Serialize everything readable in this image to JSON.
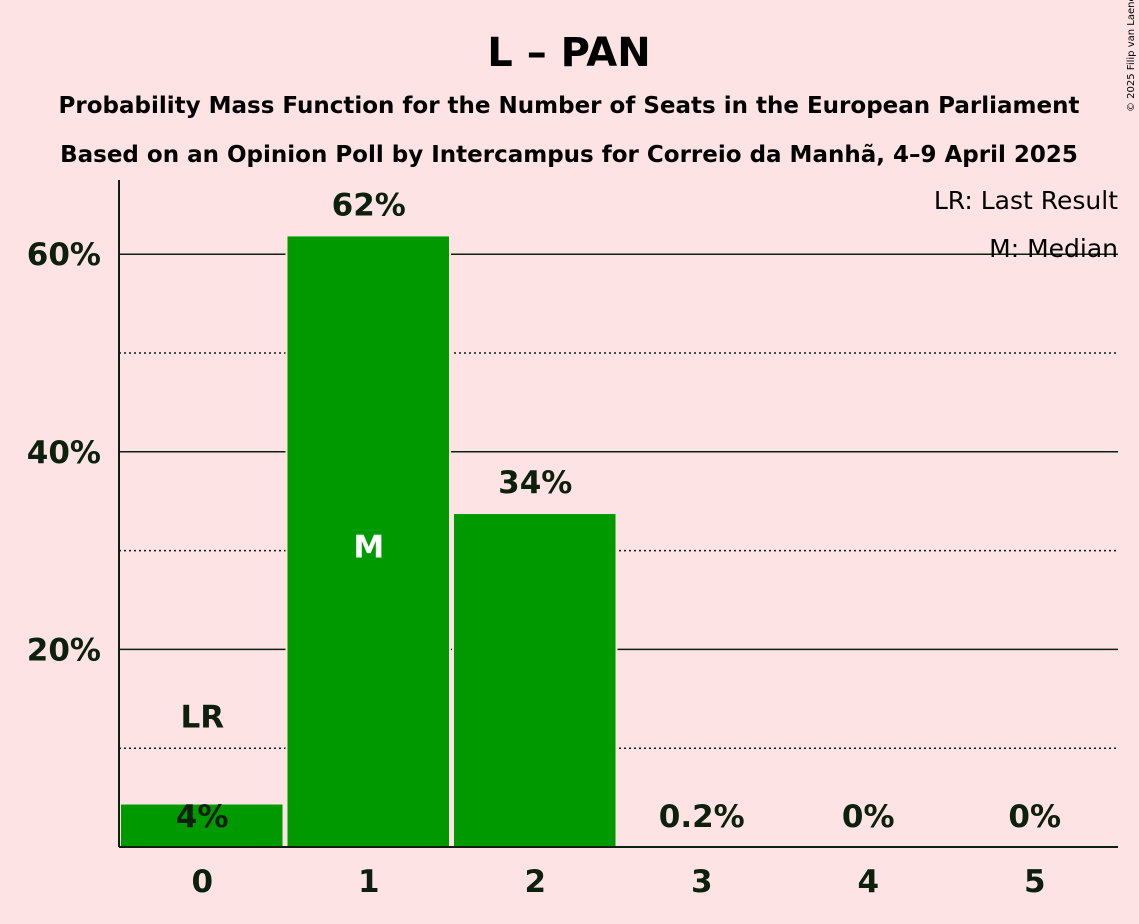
{
  "title": "L – PAN",
  "subtitle_line1": "Probability Mass Function for the Number of Seats in the European Parliament",
  "subtitle_line2": "Based on an Opinion Poll by Intercampus for Correio da Manhã, 4–9 April 2025",
  "copyright": "© 2025 Filip van Laenen",
  "legend": {
    "last_result": "LR: Last Result",
    "median": "M: Median"
  },
  "colors": {
    "background": "#fde3e3",
    "bar": "#009900",
    "text": "#0d1f0d"
  },
  "chart_data": {
    "type": "bar",
    "categories": [
      "0",
      "1",
      "2",
      "3",
      "4",
      "5"
    ],
    "values": [
      4.4,
      61.9,
      33.8,
      0.2,
      0,
      0
    ],
    "value_labels": [
      "4%",
      "62%",
      "34%",
      "0.2%",
      "0%",
      "0%"
    ],
    "ylim": [
      0,
      67
    ],
    "yticks": [
      20,
      40,
      60
    ],
    "ytick_labels": [
      "20%",
      "40%",
      "60%"
    ],
    "minor_gridlines": [
      10,
      30,
      50
    ],
    "last_result_index": 0,
    "last_result_label": "LR",
    "median_index": 1,
    "median_label": "M",
    "legend_position": "top-right"
  }
}
